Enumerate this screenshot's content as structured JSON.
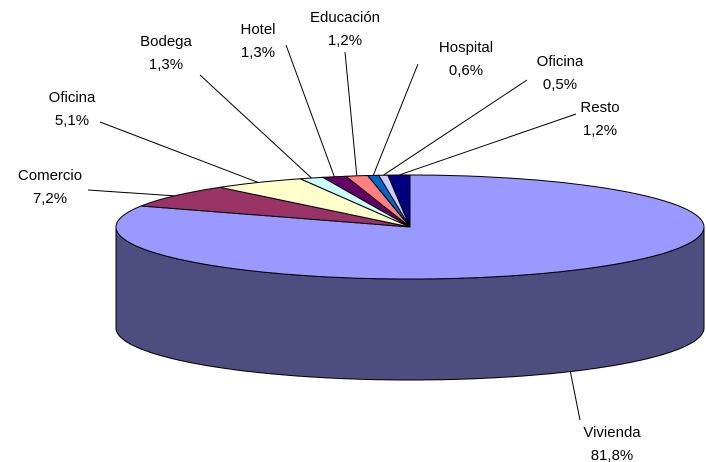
{
  "chart_data": {
    "type": "pie3d",
    "categories": [
      "Vivienda",
      "Comercio",
      "Oficina",
      "Bodega",
      "Hotel",
      "Educación",
      "Hospital",
      "Oficina",
      "Resto"
    ],
    "values": [
      81.8,
      7.2,
      5.1,
      1.3,
      1.3,
      1.2,
      0.6,
      0.5,
      1.2
    ],
    "value_labels": [
      "81,8%",
      "7,2%",
      "5,1%",
      "1,3%",
      "1,3%",
      "1,2%",
      "0,6%",
      "0,5%",
      "1,2%"
    ],
    "colors": [
      "#9999ff",
      "#993366",
      "#ffffcc",
      "#ccffff",
      "#660066",
      "#ff8080",
      "#0066cc",
      "#ccccff",
      "#000080"
    ]
  }
}
